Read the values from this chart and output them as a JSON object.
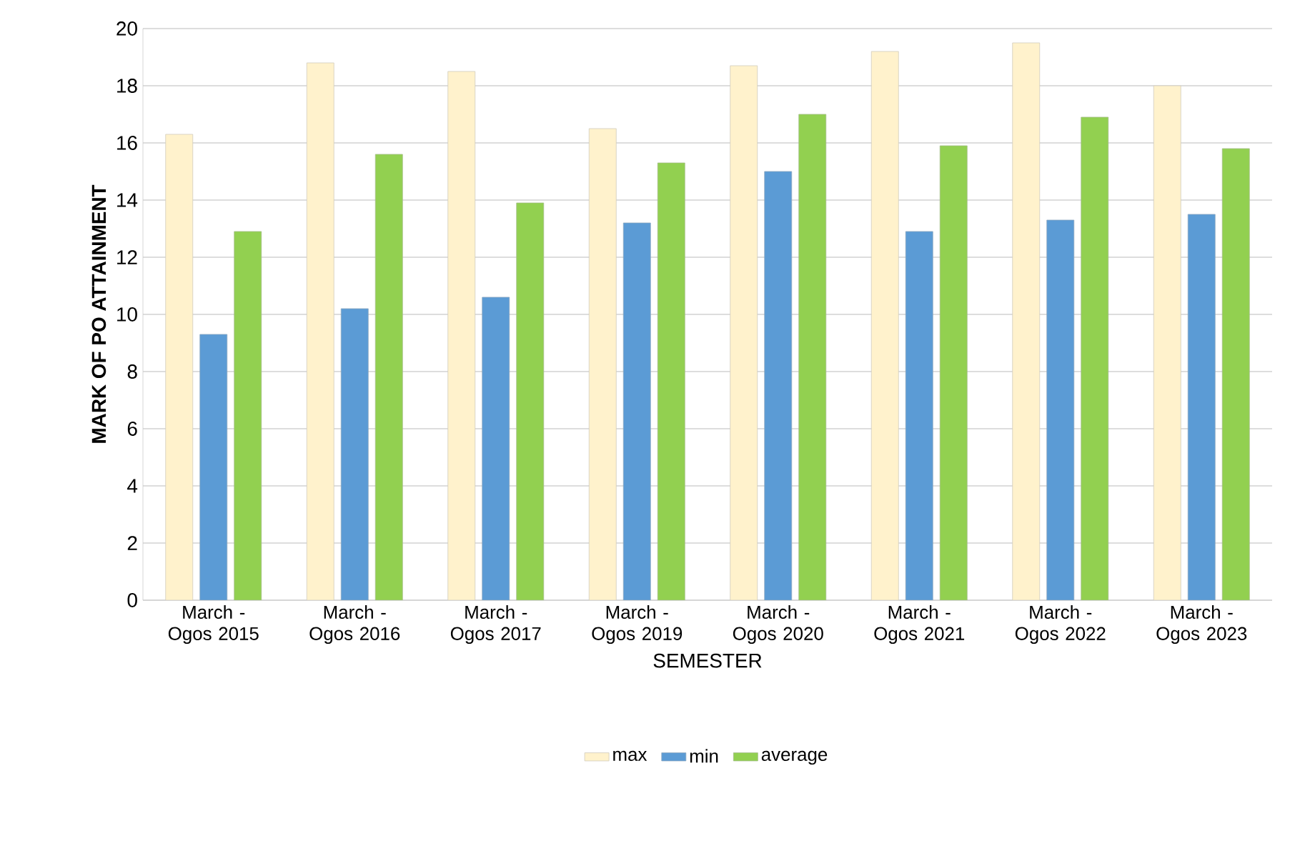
{
  "chart_data": {
    "type": "bar",
    "xlabel": "SEMESTER",
    "ylabel": "MARK OF PO ATTAINMENT",
    "categories": [
      "March - Ogos 2015",
      "March - Ogos 2016",
      "March - Ogos 2017",
      "March - Ogos 2019",
      "March - Ogos 2020",
      "March - Ogos 2021",
      "March - Ogos 2022",
      "March - Ogos 2023"
    ],
    "series": [
      {
        "name": "max",
        "color": "#fff2cc",
        "values": [
          16.3,
          18.8,
          18.5,
          16.5,
          18.7,
          19.2,
          19.5,
          18.0
        ]
      },
      {
        "name": "min",
        "color": "#5b9bd5",
        "values": [
          9.3,
          10.2,
          10.6,
          13.2,
          15.0,
          12.9,
          13.3,
          13.5
        ]
      },
      {
        "name": "average",
        "color": "#92d050",
        "values": [
          12.9,
          15.6,
          13.9,
          15.3,
          17.0,
          15.9,
          16.9,
          15.8
        ]
      }
    ],
    "ylim": [
      0,
      20
    ],
    "yticks": [
      0,
      2,
      4,
      6,
      8,
      10,
      12,
      14,
      16,
      18,
      20
    ],
    "grid": "y",
    "legend": "bottom"
  }
}
